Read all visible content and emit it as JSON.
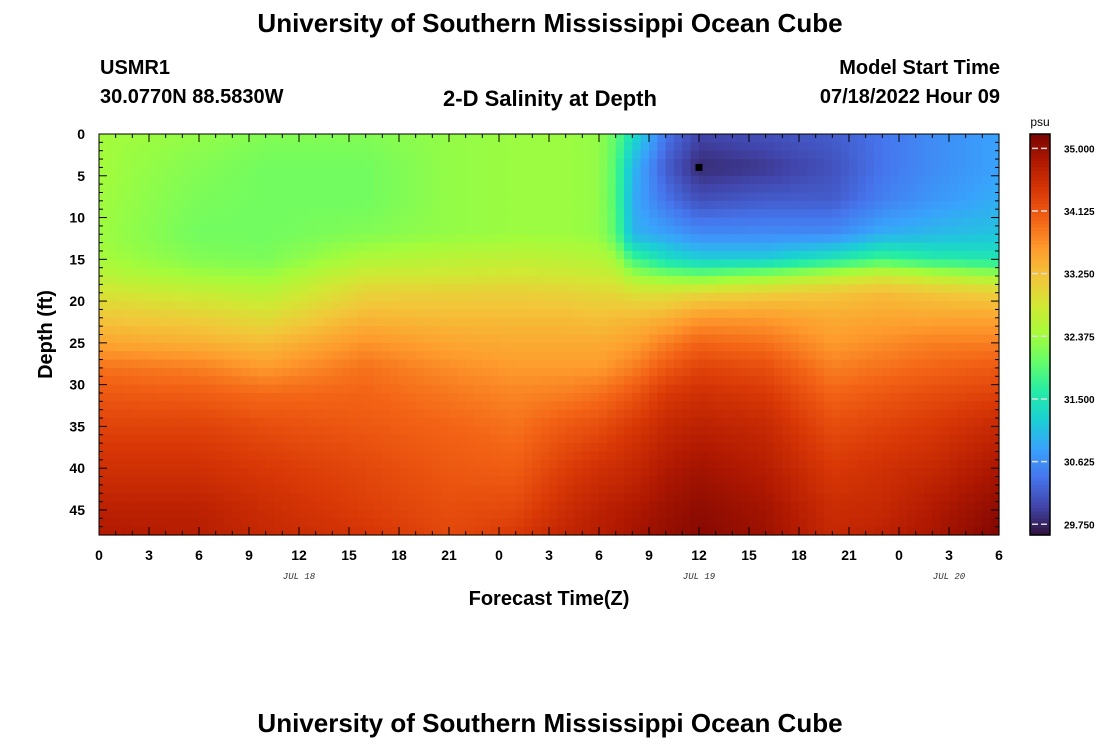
{
  "page": {
    "title": "University of Southern Mississippi Ocean Cube",
    "footer_title": "University of Southern Mississippi Ocean Cube",
    "station_id": "USMR1",
    "station_coords": "30.0770N  88.5830W",
    "plot_title": "2-D Salinity at Depth",
    "model_start_label": "Model Start Time",
    "model_start_value": "07/18/2022 Hour 09"
  },
  "chart_data": {
    "type": "heatmap",
    "title": "2-D Salinity at Depth",
    "xlabel": "Forecast Time(Z)",
    "ylabel": "Depth (ft)",
    "x_unit": "hours from 07/18/2022 00Z",
    "xlim": [
      0,
      54
    ],
    "ylim": [
      48,
      0
    ],
    "x_ticks": [
      0,
      3,
      6,
      9,
      12,
      15,
      18,
      21,
      24,
      27,
      30,
      33,
      36,
      39,
      42,
      45,
      48,
      51,
      54
    ],
    "x_tick_labels": [
      "0",
      "3",
      "6",
      "9",
      "12",
      "15",
      "18",
      "21",
      "0",
      "3",
      "6",
      "9",
      "12",
      "15",
      "18",
      "21",
      "0",
      "3",
      "6"
    ],
    "y_ticks": [
      0,
      5,
      10,
      15,
      20,
      25,
      30,
      35,
      40,
      45
    ],
    "y_tick_labels": [
      "0",
      "5",
      "10",
      "15",
      "20",
      "25",
      "30",
      "35",
      "40",
      "45"
    ],
    "date_labels": [
      {
        "x": 12,
        "label": "JUL 18"
      },
      {
        "x": 36,
        "label": "JUL 19"
      },
      {
        "x": 51,
        "label": "JUL 20"
      }
    ],
    "marker": {
      "x": 36,
      "depth": 4
    },
    "colorbar": {
      "unit": "psu",
      "range": [
        29.6,
        35.2
      ],
      "ticks": [
        35.0,
        34.125,
        33.25,
        32.375,
        31.5,
        30.625,
        29.75
      ],
      "tick_labels": [
        "35.000",
        "34.125",
        "33.250",
        "32.375",
        "31.500",
        "30.625",
        "29.750"
      ],
      "colormap": [
        "#30123b",
        "#4145ab",
        "#4675ed",
        "#39a2fc",
        "#1bcfd4",
        "#24eca6",
        "#61fc6c",
        "#a4fc3b",
        "#d1e834",
        "#f3c63a",
        "#fe9b2d",
        "#f36315",
        "#d93806",
        "#b11901",
        "#7a0402"
      ]
    },
    "depth_profile_levels": [
      0,
      4,
      8,
      12,
      15,
      17,
      19,
      22,
      25,
      28,
      31,
      35,
      40,
      45,
      48
    ],
    "salinity_profiles_psu": [
      {
        "time": 0,
        "salinity": [
          32.4,
          32.4,
          32.38,
          32.36,
          32.42,
          32.6,
          32.85,
          33.2,
          33.5,
          33.9,
          34.1,
          34.3,
          34.5,
          34.7,
          34.8
        ]
      },
      {
        "time": 6,
        "salinity": [
          32.3,
          32.2,
          32.15,
          32.1,
          32.2,
          32.4,
          32.7,
          33.1,
          33.4,
          33.8,
          34.05,
          34.3,
          34.5,
          34.7,
          34.75
        ]
      },
      {
        "time": 10,
        "salinity": [
          32.2,
          32.1,
          32.1,
          32.1,
          32.15,
          32.35,
          32.6,
          32.95,
          33.3,
          33.6,
          33.95,
          34.2,
          34.4,
          34.55,
          34.6
        ]
      },
      {
        "time": 16,
        "salinity": [
          32.2,
          32.1,
          32.1,
          32.2,
          32.5,
          32.8,
          33.05,
          33.35,
          33.65,
          33.9,
          34.0,
          34.1,
          34.25,
          34.35,
          34.45
        ]
      },
      {
        "time": 21,
        "salinity": [
          32.3,
          32.3,
          32.3,
          32.3,
          32.6,
          32.8,
          33.1,
          33.3,
          33.5,
          33.7,
          33.85,
          34.0,
          34.1,
          34.2,
          34.25
        ]
      },
      {
        "time": 25,
        "salinity": [
          32.35,
          32.35,
          32.35,
          32.35,
          32.65,
          32.85,
          33.1,
          33.3,
          33.45,
          33.6,
          33.75,
          33.9,
          34.05,
          34.25,
          34.4
        ]
      },
      {
        "time": 28,
        "salinity": [
          32.35,
          32.35,
          32.35,
          32.35,
          32.6,
          32.8,
          33.05,
          33.3,
          33.45,
          33.6,
          33.8,
          34.1,
          34.35,
          34.55,
          34.65
        ]
      },
      {
        "time": 30,
        "salinity": [
          32.3,
          32.3,
          32.3,
          32.3,
          32.55,
          32.75,
          33.0,
          33.25,
          33.45,
          33.6,
          33.9,
          34.2,
          34.5,
          34.7,
          34.75
        ]
      },
      {
        "time": 31,
        "salinity": [
          32.0,
          31.9,
          31.9,
          31.95,
          32.4,
          32.7,
          33.0,
          33.3,
          33.5,
          33.7,
          34.0,
          34.3,
          34.55,
          34.75,
          34.8
        ]
      },
      {
        "time": 32,
        "salinity": [
          31.4,
          31.0,
          30.9,
          30.95,
          31.8,
          32.4,
          32.9,
          33.3,
          33.55,
          33.8,
          34.1,
          34.4,
          34.6,
          34.8,
          34.9
        ]
      },
      {
        "time": 34,
        "salinity": [
          30.4,
          30.2,
          30.4,
          30.8,
          31.4,
          32.2,
          32.9,
          33.4,
          33.8,
          34.1,
          34.4,
          34.6,
          34.8,
          34.95,
          35.0
        ]
      },
      {
        "time": 36,
        "salinity": [
          30.0,
          29.8,
          30.1,
          30.6,
          31.2,
          32.1,
          33.0,
          33.6,
          34.0,
          34.3,
          34.5,
          34.7,
          34.9,
          35.05,
          35.1
        ]
      },
      {
        "time": 40,
        "salinity": [
          30.1,
          29.9,
          30.2,
          30.6,
          31.2,
          32.3,
          33.1,
          33.6,
          33.9,
          34.2,
          34.4,
          34.6,
          34.75,
          34.9,
          34.95
        ]
      },
      {
        "time": 44,
        "salinity": [
          30.2,
          30.1,
          30.2,
          30.6,
          31.5,
          32.6,
          33.2,
          33.45,
          33.6,
          33.8,
          34.0,
          34.2,
          34.4,
          34.55,
          34.6
        ]
      },
      {
        "time": 47,
        "salinity": [
          30.4,
          30.4,
          30.5,
          30.9,
          31.8,
          32.8,
          33.3,
          33.5,
          33.7,
          33.9,
          34.1,
          34.3,
          34.5,
          34.6,
          34.7
        ]
      },
      {
        "time": 50,
        "salinity": [
          30.6,
          30.6,
          30.7,
          31.0,
          31.6,
          32.6,
          33.2,
          33.5,
          33.8,
          34.0,
          34.2,
          34.4,
          34.6,
          34.8,
          34.85
        ]
      },
      {
        "time": 54,
        "salinity": [
          30.8,
          30.8,
          30.9,
          31.1,
          31.5,
          32.4,
          33.1,
          33.5,
          33.8,
          34.1,
          34.3,
          34.6,
          34.85,
          35.05,
          35.15
        ]
      }
    ]
  }
}
